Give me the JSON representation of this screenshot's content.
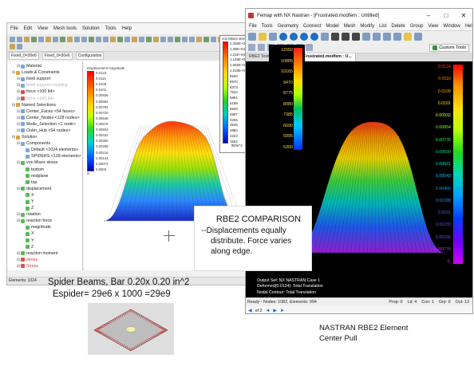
{
  "left_window": {
    "menu": [
      "File",
      "Edit",
      "View",
      "Mesh tools",
      "Solution",
      "Tools",
      "Help"
    ],
    "tabs": [
      "Fixed_0=30e6",
      "Fixed_0=30e6",
      "Configuration"
    ],
    "tree": [
      {
        "label": "Material",
        "level": 2,
        "icon": "blue"
      },
      {
        "label": "Loads & Constraints",
        "level": 1,
        "icon": "orange"
      },
      {
        "label": "fixed support",
        "level": 2,
        "icon": "blue"
      },
      {
        "label": "fixed support-coupling",
        "level": 2,
        "icon": "blue",
        "style": "hl"
      },
      {
        "label": "force <100 lbf>",
        "level": 2,
        "icon": "red"
      },
      {
        "label": "force <100 lbf>",
        "level": 2,
        "icon": "red",
        "style": "hl"
      },
      {
        "label": "Named Selections",
        "level": 1,
        "icon": "orange"
      },
      {
        "label": "Center_Faces <54 faces>",
        "level": 2,
        "icon": "blue"
      },
      {
        "label": "Center_Nodes <128 nodes>",
        "level": 2,
        "icon": "blue"
      },
      {
        "label": "Mode_Selection <1 node>",
        "level": 2,
        "icon": "blue"
      },
      {
        "label": "Outer_Hub <64 nodes>",
        "level": 2,
        "icon": "blue"
      },
      {
        "label": "Solution",
        "level": 1,
        "icon": "orange"
      },
      {
        "label": "Components",
        "level": 2,
        "icon": "blue"
      },
      {
        "label": "Default <1024 elements>",
        "level": 3,
        "icon": "blue"
      },
      {
        "label": "SPIDERS <128 elements>",
        "level": 3,
        "icon": "blue"
      },
      {
        "label": "von Mises stress",
        "level": 2,
        "icon": "green"
      },
      {
        "label": "bottom",
        "level": 3,
        "icon": "green"
      },
      {
        "label": "midplane",
        "level": 3,
        "icon": "green"
      },
      {
        "label": "top",
        "level": 3,
        "icon": "green"
      },
      {
        "label": "displacement",
        "level": 2,
        "icon": "green"
      },
      {
        "label": "X",
        "level": 3,
        "icon": "green"
      },
      {
        "label": "Y",
        "level": 3,
        "icon": "green"
      },
      {
        "label": "Z",
        "level": 3,
        "icon": "green"
      },
      {
        "label": "rotation",
        "level": 2,
        "icon": "green"
      },
      {
        "label": "reaction force",
        "level": 2,
        "icon": "green"
      },
      {
        "label": "magnitude",
        "level": 3,
        "icon": "green"
      },
      {
        "label": "X",
        "level": 3,
        "icon": "green"
      },
      {
        "label": "Y",
        "level": 3,
        "icon": "green"
      },
      {
        "label": "Z",
        "level": 3,
        "icon": "green"
      },
      {
        "label": "reaction moment",
        "level": 2,
        "icon": "green"
      },
      {
        "label": "stress",
        "level": 2,
        "icon": "red",
        "style": "red-text"
      },
      {
        "label": "Stress",
        "level": 2,
        "icon": "red",
        "style": "red-text"
      }
    ],
    "legend_title": "Displacement magnitude",
    "legend_values": [
      "0.0123",
      "0.0116",
      "0.0108",
      "0.0101",
      "0.00936",
      "0.00864",
      "0.00792",
      "0.00720",
      "0.00648",
      "0.00576",
      "0.00504",
      "0.00432",
      "0.00360",
      "0.00288",
      "0.00216",
      "0.00144",
      "0.00072",
      "0.0000"
    ],
    "legend_unit": "in",
    "status": "Elements: 1024"
  },
  "vm_panel": {
    "title": "von Mises stress",
    "values": [
      "1.346E+04",
      "1.28E+04",
      "1.21E+04",
      "1.145E+04",
      "1.082E+04",
      "1.018E+04",
      "9540",
      "8970",
      "8373",
      "7522",
      "6891",
      "6189",
      "5528",
      "4867",
      "4206",
      "3545",
      "2884",
      "2223",
      "1562"
    ],
    "unit": "lbf/in^2"
  },
  "mid_legend": {
    "values": [
      "11550",
      "10885",
      "10165",
      "9470",
      "8775",
      "8080",
      "7385",
      "6690",
      "5995",
      "5300"
    ]
  },
  "femap": {
    "title": "Femap with NX Nastran - [Frustrated.modfem : Untitled]",
    "menu": [
      "File",
      "Tools",
      "Geometry",
      "Connect",
      "Model",
      "Mesh",
      "Modify",
      "List",
      "Delete",
      "Group",
      "View",
      "Window",
      "Help"
    ],
    "custom_tools": "Custom Tools",
    "tabs": [
      "RBE2 TestCX.mp : Untit...",
      "Frustrated.modfem : U..."
    ],
    "legend_values": [
      "0.0124",
      "0.0116",
      "0.0109",
      "0.0101",
      "0.00932",
      "0.00854",
      "0.00776",
      "0.00699",
      "0.00621",
      "0.00543",
      "0.00466",
      "0.00388",
      "0.0031",
      "0.00233",
      "0.00155",
      "0.000776",
      "0."
    ],
    "output_set": "Output Set: NX NASTRAN Case 1",
    "deformed": "Deformed(0.0124): Total Translation",
    "contour": "Nodal Contour: Total Translation",
    "status_left": "Ready - Nodes: 1082, Elements: 994",
    "status_right": [
      "Prop: 0",
      "Ld: 4",
      "Con: 1",
      "Grp: 0",
      "Out: 13"
    ],
    "pager": "of 2"
  },
  "compare_box": {
    "title": "RBE2 COMPARISON",
    "lines": [
      "--Displacements equally",
      "distribute.  Force varies",
      "along edge."
    ]
  },
  "spider_label": {
    "line1": "Spider Beams, Bar 0.20x 0.20 in^2",
    "line2": "Espider= 29e6 x 1000 =29e9"
  },
  "nastran_caption": {
    "line1": "NASTRAN RBE2 Element",
    "line2": "Center Pull"
  }
}
